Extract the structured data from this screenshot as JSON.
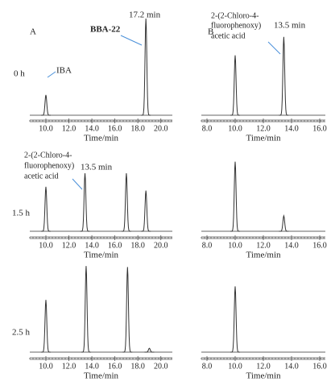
{
  "labels": {
    "panel_a": "A",
    "panel_b": "B",
    "row_0": "0 h",
    "row_1": "1.5 h",
    "row_2": "2.5 h"
  },
  "chart_data": [
    {
      "type": "chromatogram",
      "x_label": "Time/min",
      "x": [
        10.0,
        18.7
      ],
      "values": [
        21,
        100
      ],
      "color": "#333333",
      "annotations": [
        "IBA",
        "BBA-22",
        "17.2 min"
      ],
      "xlim": [
        8.6,
        21.0
      ],
      "xticks": [
        {
          "value": 10,
          "label": "10.0"
        },
        {
          "value": 12,
          "label": "12.0"
        },
        {
          "value": 14,
          "label": "14.0"
        },
        {
          "value": 16,
          "label": "16.0"
        },
        {
          "value": 18,
          "label": "18.0"
        },
        {
          "value": 20,
          "label": "20.0"
        }
      ]
    },
    {
      "type": "chromatogram",
      "x_label": "Time/min",
      "x": [
        10.0,
        13.45
      ],
      "values": [
        62,
        81
      ],
      "color": "#333333",
      "annotations": [
        "2-(2-Chloro-4-",
        "fluorophenoxy)",
        "acetic acid",
        "13.5 min"
      ],
      "xlim": [
        7.6,
        16.4
      ],
      "xticks": [
        {
          "value": 8,
          "label": "8.0"
        },
        {
          "value": 10,
          "label": "10.0"
        },
        {
          "value": 12,
          "label": "12.0"
        },
        {
          "value": 14,
          "label": "14.0"
        },
        {
          "value": 16,
          "label": "16.0"
        }
      ]
    },
    {
      "type": "chromatogram",
      "x_label": "Time/min",
      "x": [
        10.0,
        13.4,
        17.0,
        18.7
      ],
      "values": [
        46,
        60,
        60,
        42
      ],
      "color": "#333333",
      "annotations": [
        "2-(2-Chloro-4-",
        "fluorophenoxy)",
        "acetic acid",
        "13.5 min"
      ],
      "xlim": [
        8.6,
        21.0
      ],
      "xticks": [
        {
          "value": 10,
          "label": "10.0"
        },
        {
          "value": 12,
          "label": "12.0"
        },
        {
          "value": 14,
          "label": "14.0"
        },
        {
          "value": 16,
          "label": "16.0"
        },
        {
          "value": 18,
          "label": "18.0"
        },
        {
          "value": 20,
          "label": "20.0"
        }
      ]
    },
    {
      "type": "chromatogram",
      "x_label": "Time/min",
      "x": [
        10.0,
        13.45
      ],
      "values": [
        72,
        16
      ],
      "color": "#333333",
      "xlim": [
        7.6,
        16.4
      ],
      "xticks": [
        {
          "value": 8,
          "label": "8.0"
        },
        {
          "value": 10,
          "label": "10.0"
        },
        {
          "value": 12,
          "label": "12.0"
        },
        {
          "value": 14,
          "label": "14.0"
        },
        {
          "value": 16,
          "label": "16.0"
        }
      ]
    },
    {
      "type": "chromatogram",
      "x_label": "Time/min",
      "x": [
        10.0,
        13.5,
        17.1,
        19.0
      ],
      "values": [
        54,
        89,
        88,
        4
      ],
      "color": "#333333",
      "xlim": [
        8.6,
        21.0
      ],
      "xticks": [
        {
          "value": 10,
          "label": "10.0"
        },
        {
          "value": 12,
          "label": "12.0"
        },
        {
          "value": 14,
          "label": "14.0"
        },
        {
          "value": 16,
          "label": "16.0"
        },
        {
          "value": 18,
          "label": "18.0"
        },
        {
          "value": 20,
          "label": "20.0"
        }
      ]
    },
    {
      "type": "chromatogram",
      "x_label": "Time/min",
      "x": [
        10.0
      ],
      "values": [
        68
      ],
      "color": "#333333",
      "xlim": [
        7.6,
        16.4
      ],
      "xticks": [
        {
          "value": 8,
          "label": "8.0"
        },
        {
          "value": 10,
          "label": "10.0"
        },
        {
          "value": 12,
          "label": "12.0"
        },
        {
          "value": 14,
          "label": "14.0"
        },
        {
          "value": 16,
          "label": "16.0"
        }
      ]
    }
  ]
}
